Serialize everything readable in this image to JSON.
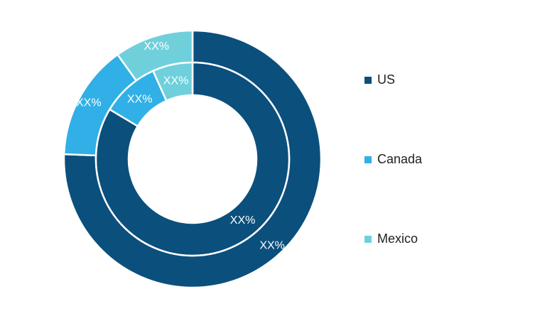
{
  "chart_data": {
    "type": "pie",
    "subtype": "nested-donut",
    "categories": [
      "US",
      "Canada",
      "Mexico"
    ],
    "colors": [
      "#0b4f7d",
      "#30b0e6",
      "#6fd0dc"
    ],
    "series": [
      {
        "ring": "outer",
        "values": [
          75.6,
          14.5,
          9.9
        ],
        "labels": [
          "XX%",
          "XX%",
          "XX%"
        ]
      },
      {
        "ring": "inner",
        "values": [
          83.6,
          9.7,
          6.7
        ],
        "labels": [
          "XX%",
          "XX%",
          "XX%"
        ]
      }
    ],
    "legend": {
      "position": "right",
      "entries": [
        "US",
        "Canada",
        "Mexico"
      ]
    }
  }
}
